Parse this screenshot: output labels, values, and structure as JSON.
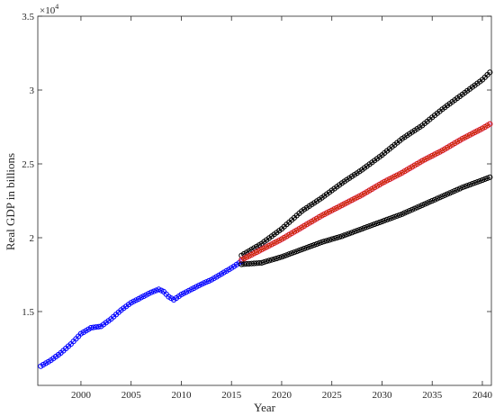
{
  "chart_data": {
    "type": "line",
    "title": "",
    "xlabel": "Year",
    "ylabel": "Real GDP in billions",
    "xlim": [
      1995.7,
      2040.9
    ],
    "ylim": [
      10000,
      35000
    ],
    "y_exponent_label": {
      "base": "×10",
      "power": "4"
    },
    "x_ticks": [
      2000,
      2005,
      2010,
      2015,
      2020,
      2025,
      2030,
      2035,
      2040
    ],
    "x_tick_labels": [
      "2000",
      "2005",
      "2010",
      "2015",
      "2020",
      "2025",
      "2030",
      "2035",
      "2040"
    ],
    "y_ticks": [
      15000,
      20000,
      25000,
      30000,
      35000
    ],
    "y_tick_labels": [
      "1.5",
      "2",
      "2.5",
      "3",
      "3.5"
    ],
    "grid": false,
    "legend": "none",
    "marker": "circle",
    "series": [
      {
        "role": "historical",
        "color": "#0000ff",
        "x": [
          1996.0,
          1997.0,
          1998.0,
          1999.0,
          2000.0,
          2001.0,
          2002.0,
          2003.0,
          2004.0,
          2005.0,
          2006.0,
          2007.0,
          2007.75,
          2008.25,
          2008.75,
          2009.25,
          2010.0,
          2011.0,
          2012.0,
          2013.0,
          2014.0,
          2015.0,
          2016.0
        ],
        "y": [
          11300,
          11700,
          12200,
          12800,
          13500,
          13900,
          14000,
          14500,
          15100,
          15600,
          15950,
          16300,
          16500,
          16350,
          16000,
          15800,
          16150,
          16500,
          16850,
          17150,
          17550,
          17950,
          18400
        ]
      },
      {
        "role": "upper-bound",
        "color": "#000000",
        "x": [
          2016.0,
          2018.0,
          2020.0,
          2022.0,
          2024.0,
          2026.0,
          2028.0,
          2030.0,
          2032.0,
          2034.0,
          2036.0,
          2038.0,
          2040.0,
          2040.75
        ],
        "y": [
          18800,
          19600,
          20600,
          21800,
          22700,
          23700,
          24600,
          25600,
          26700,
          27600,
          28700,
          29700,
          30700,
          31200
        ]
      },
      {
        "role": "forecast",
        "color": "#cc2200",
        "x": [
          2016.0,
          2018.0,
          2020.0,
          2022.0,
          2024.0,
          2026.0,
          2028.0,
          2030.0,
          2032.0,
          2034.0,
          2036.0,
          2038.0,
          2040.0,
          2040.75
        ],
        "y": [
          18500,
          19200,
          19900,
          20700,
          21500,
          22200,
          22900,
          23700,
          24400,
          25200,
          25900,
          26700,
          27400,
          27700
        ]
      },
      {
        "role": "lower-bound",
        "color": "#000000",
        "x": [
          2016.0,
          2018.0,
          2020.0,
          2022.0,
          2024.0,
          2026.0,
          2028.0,
          2030.0,
          2032.0,
          2034.0,
          2036.0,
          2038.0,
          2040.0,
          2040.75
        ],
        "y": [
          18200,
          18300,
          18700,
          19200,
          19700,
          20100,
          20600,
          21100,
          21600,
          22200,
          22800,
          23400,
          23900,
          24100
        ]
      }
    ]
  }
}
